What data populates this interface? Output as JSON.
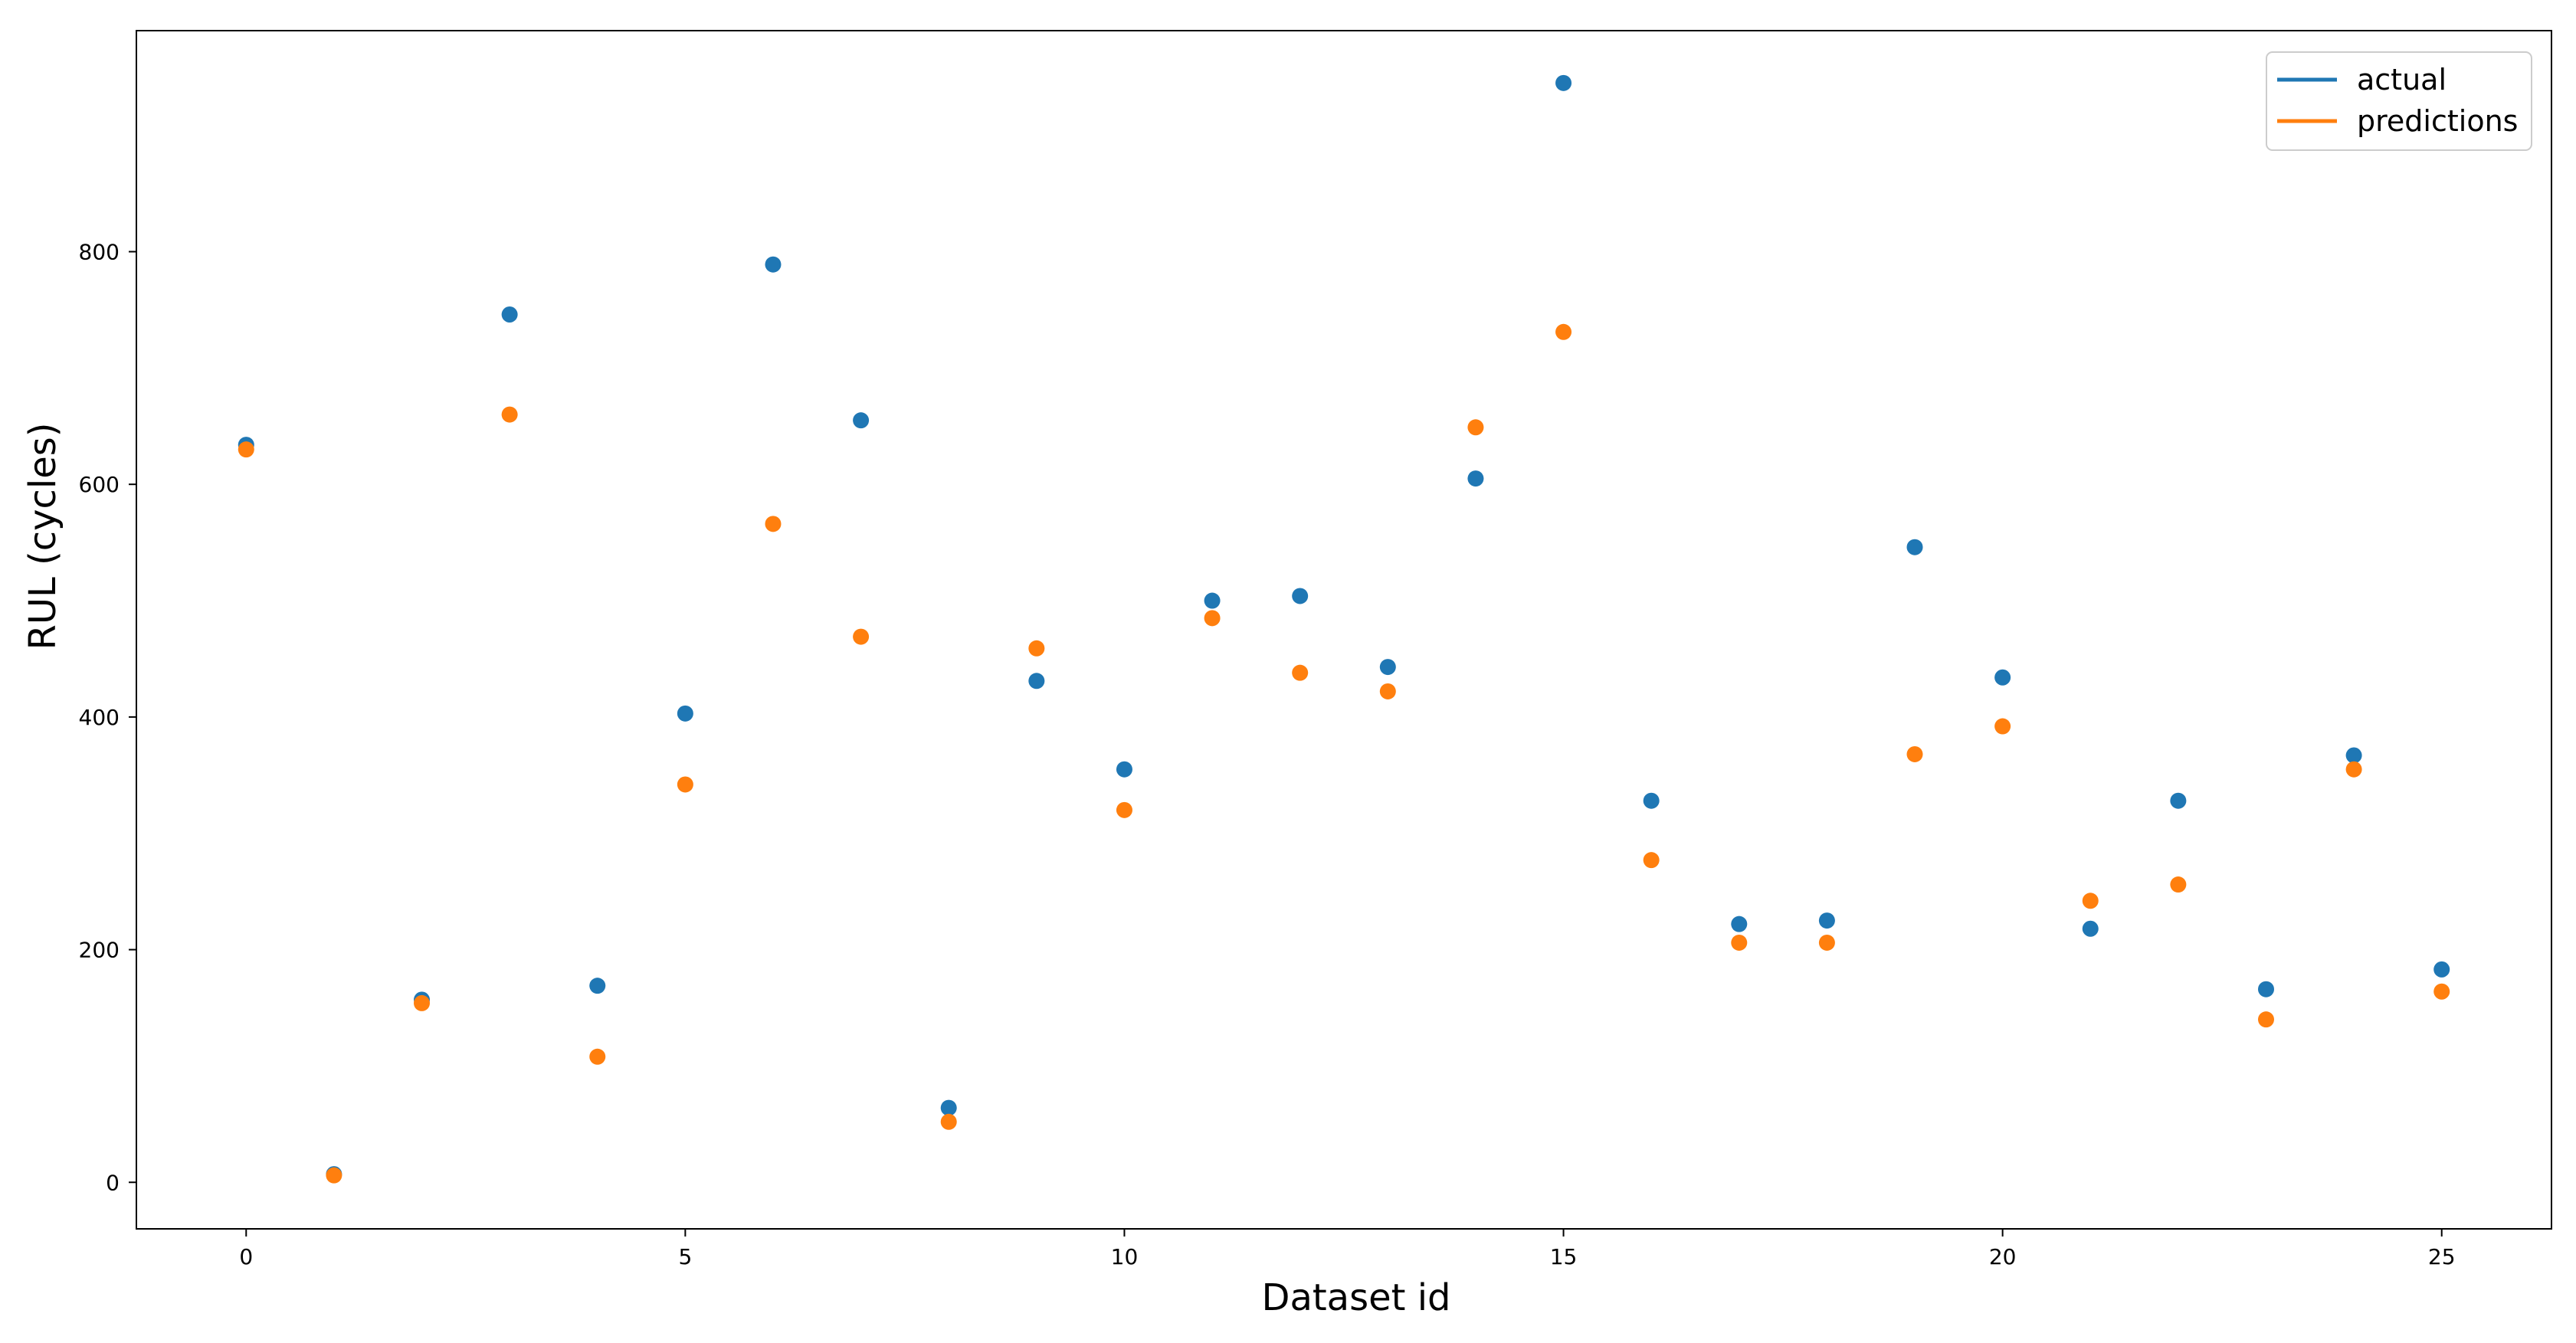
{
  "chart_data": {
    "type": "scatter",
    "title": "",
    "xlabel": "Dataset id",
    "ylabel": "RUL (cycles)",
    "xlim": [
      -1.25,
      26.25
    ],
    "ylim": [
      -40,
      990
    ],
    "xticks": [
      0,
      5,
      10,
      15,
      20,
      25
    ],
    "yticks": [
      0,
      200,
      400,
      600,
      800
    ],
    "grid": false,
    "legend_position": "top-right",
    "x": [
      0,
      1,
      2,
      3,
      4,
      5,
      6,
      7,
      8,
      9,
      10,
      11,
      12,
      13,
      14,
      15,
      16,
      17,
      18,
      19,
      20,
      21,
      22,
      23,
      24,
      25
    ],
    "series": [
      {
        "name": "actual",
        "color": "#1f77b4",
        "values": [
          634,
          7,
          157,
          746,
          169,
          403,
          789,
          655,
          64,
          431,
          355,
          500,
          504,
          443,
          605,
          945,
          328,
          222,
          225,
          546,
          434,
          218,
          328,
          166,
          367,
          183
        ]
      },
      {
        "name": "predictions",
        "color": "#ff7f0e",
        "values": [
          630,
          6,
          154,
          660,
          108,
          342,
          566,
          469,
          52,
          459,
          320,
          485,
          438,
          422,
          649,
          731,
          277,
          206,
          206,
          368,
          392,
          242,
          256,
          140,
          355,
          164
        ]
      }
    ]
  }
}
